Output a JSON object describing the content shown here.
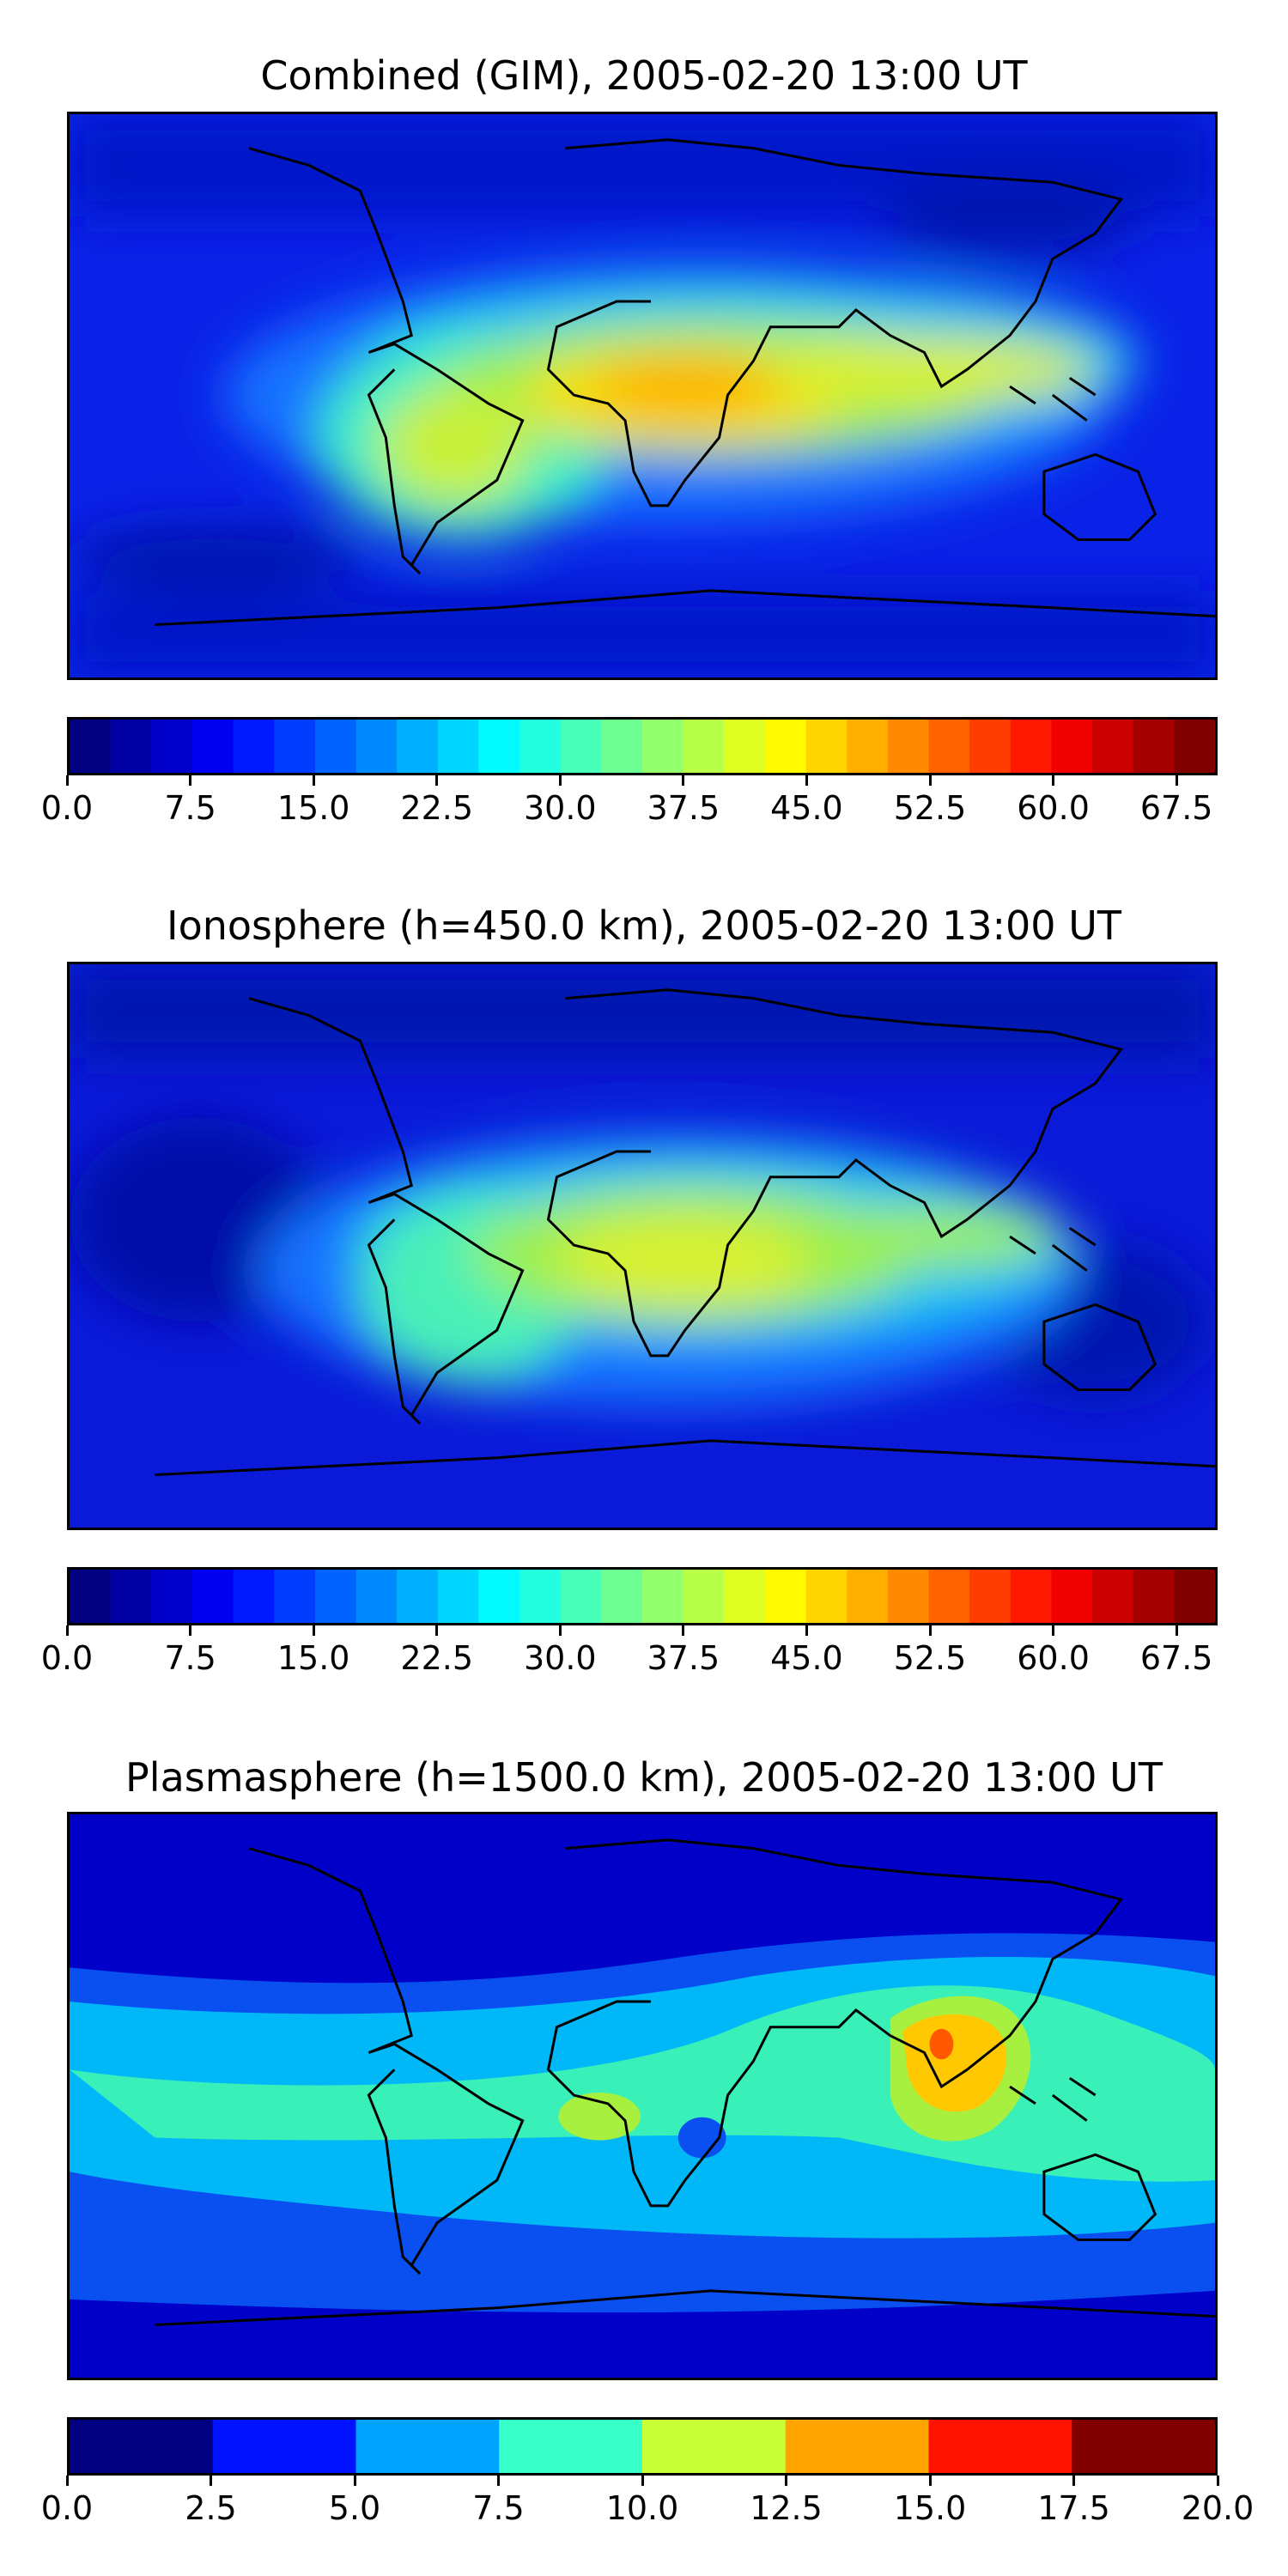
{
  "figure": {
    "panels": [
      {
        "title": "Combined (GIM), 2005-02-20 13:00 UT",
        "field": "combined",
        "colorbar": {
          "levels": 28,
          "min": 0.0,
          "max": 70.0,
          "ticks": [
            "0.0",
            "7.5",
            "15.0",
            "22.5",
            "30.0",
            "37.5",
            "45.0",
            "52.5",
            "60.0",
            "67.5"
          ],
          "tick_values": [
            0.0,
            7.5,
            15.0,
            22.5,
            30.0,
            37.5,
            45.0,
            52.5,
            60.0,
            67.5
          ]
        }
      },
      {
        "title": "Ionosphere  (h=450.0 km), 2005-02-20 13:00 UT",
        "field": "ionosphere",
        "colorbar": {
          "levels": 28,
          "min": 0.0,
          "max": 70.0,
          "ticks": [
            "0.0",
            "7.5",
            "15.0",
            "22.5",
            "30.0",
            "37.5",
            "45.0",
            "52.5",
            "60.0",
            "67.5"
          ],
          "tick_values": [
            0.0,
            7.5,
            15.0,
            22.5,
            30.0,
            37.5,
            45.0,
            52.5,
            60.0,
            67.5
          ]
        }
      },
      {
        "title": "Plasmasphere (h=1500.0 km), 2005-02-20 13:00 UT",
        "field": "plasmasphere",
        "colorbar": {
          "levels": 8,
          "min": 0.0,
          "max": 20.0,
          "ticks": [
            "0.0",
            "2.5",
            "5.0",
            "7.5",
            "10.0",
            "12.5",
            "15.0",
            "17.5",
            "20.0"
          ],
          "tick_values": [
            0.0,
            2.5,
            5.0,
            7.5,
            10.0,
            12.5,
            15.0,
            17.5,
            20.0
          ]
        }
      }
    ],
    "colormap": "jet",
    "coastline_color": "#000000"
  }
}
